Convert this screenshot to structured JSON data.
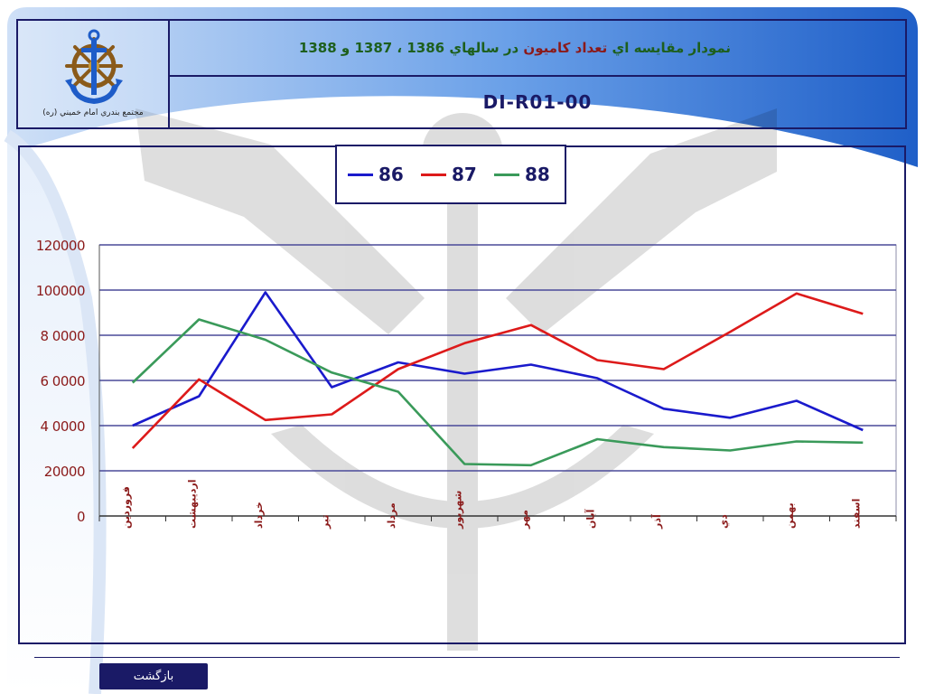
{
  "header": {
    "logo_caption": "مجتمع بندري امام خميني (ره)",
    "title_part1": "نمودار مقايسه اي ",
    "title_highlight": "تعداد كاميون",
    "title_part2": " در سالهاي 1386 ، 1387 و 1388",
    "document_code": "DI-R01-00"
  },
  "footer": {
    "back_label": "بازگشت"
  },
  "colors": {
    "frame": "#1a1a66",
    "title_green": "#1d5f1d",
    "title_red": "#8b1a1a",
    "tick_label": "#8b1a1a",
    "series_86": "#1a1acc",
    "series_87": "#dd1a1a",
    "series_88": "#3a9a5a"
  },
  "chart_data": {
    "type": "line",
    "categories": [
      "فروردین",
      "اردیبهشت",
      "خرداد",
      "تیر",
      "مرداد",
      "شهریور",
      "مهر",
      "آبان",
      "آذر",
      "دي",
      "بهمن",
      "اسفند"
    ],
    "series": [
      {
        "name": "86",
        "color": "#1a1acc",
        "values": [
          40000,
          53000,
          99000,
          57000,
          68000,
          63000,
          67000,
          61000,
          47500,
          43500,
          51000,
          38000
        ]
      },
      {
        "name": "87",
        "color": "#dd1a1a",
        "values": [
          30000,
          60500,
          42500,
          45000,
          65000,
          76500,
          84500,
          69000,
          65000,
          81500,
          98500,
          89500
        ]
      },
      {
        "name": "88",
        "color": "#3a9a5a",
        "values": [
          59000,
          87000,
          78000,
          63500,
          55000,
          23000,
          22500,
          34000,
          30500,
          29000,
          33000,
          32500
        ]
      }
    ],
    "yticks": [
      "0",
      "20000",
      "4 0000",
      "6 0000",
      "8 0000",
      "100000",
      "120000"
    ],
    "ylim": [
      0,
      120000
    ],
    "grid": true,
    "legend_position": "top-center"
  }
}
